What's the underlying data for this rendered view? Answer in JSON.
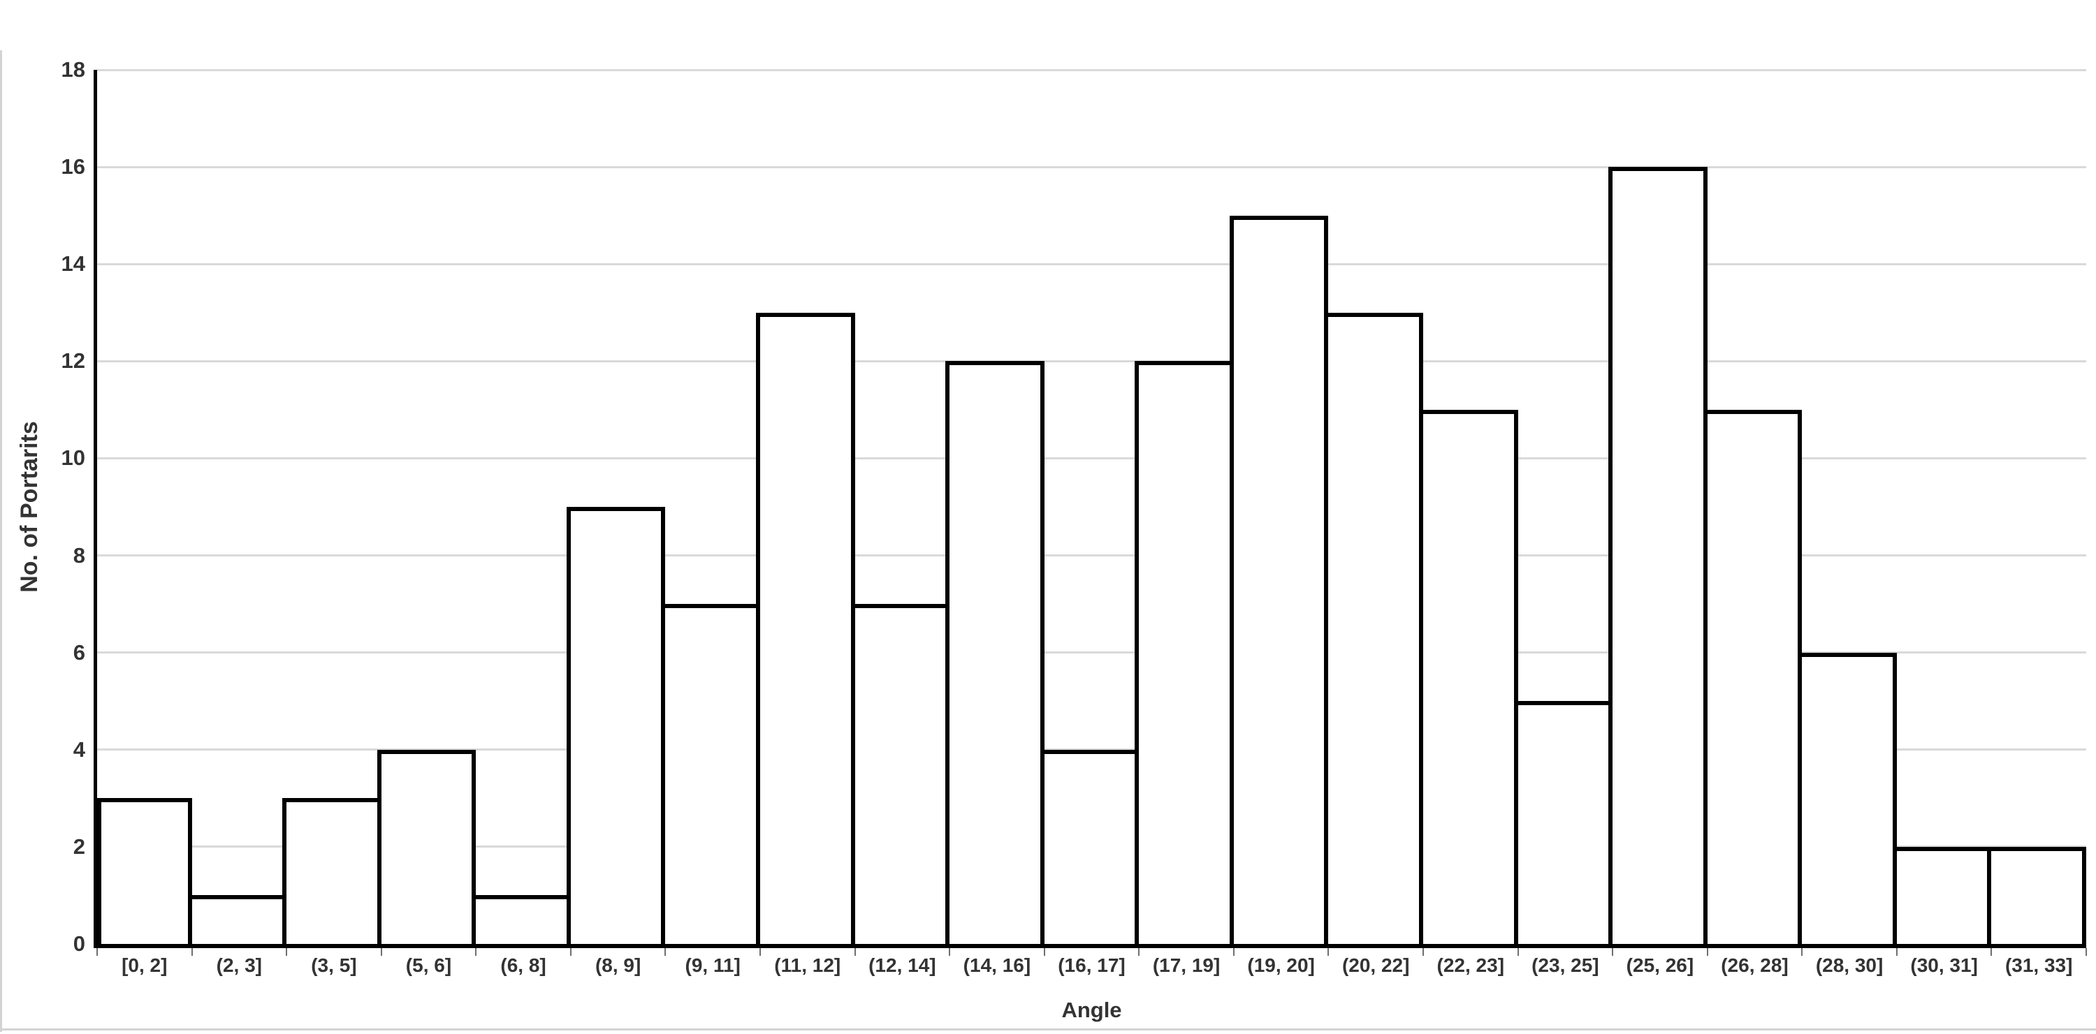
{
  "chart_data": {
    "type": "bar",
    "subtype": "histogram",
    "title": "",
    "xlabel": "Angle",
    "ylabel": "No. of Portarits",
    "categories": [
      "[0, 2]",
      "(2, 3]",
      "(3, 5]",
      "(5, 6]",
      "(6, 8]",
      "(8, 9]",
      "(9, 11]",
      "(11, 12]",
      "(12, 14]",
      "(14, 16]",
      "(16, 17]",
      "(17, 19]",
      "(19, 20]",
      "(20, 22]",
      "(22, 23]",
      "(23, 25]",
      "(25, 26]",
      "(26, 28]",
      "(28, 30]",
      "(30, 31]",
      "(31, 33]"
    ],
    "values": [
      3,
      1,
      3,
      4,
      1,
      9,
      7,
      13,
      7,
      12,
      4,
      12,
      15,
      13,
      11,
      5,
      16,
      11,
      6,
      2,
      2
    ],
    "ylim": [
      0,
      18
    ],
    "yticks": [
      0,
      2,
      4,
      6,
      8,
      10,
      12,
      14,
      16,
      18
    ],
    "grid": "horizontal",
    "legend": "none",
    "bar_fill": "#ffffff",
    "bar_stroke": "#000000"
  },
  "colors": {
    "background": "#ffffff",
    "text": "#333333",
    "gridline": "#d9d9d9",
    "axis": "#000000",
    "frame_border": "#d3d3d3"
  }
}
